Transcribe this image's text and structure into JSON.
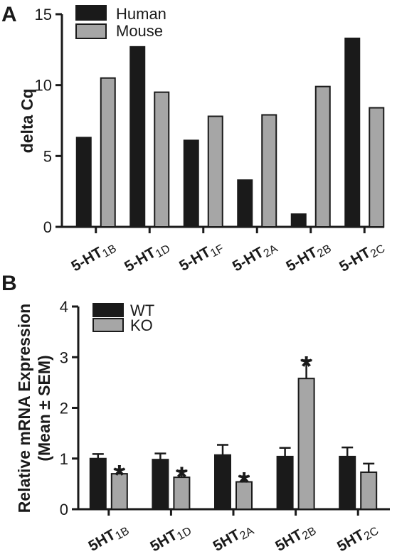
{
  "chart_data": [
    {
      "panel": "A",
      "type": "bar",
      "ylabel": "delta Cq",
      "ylim": [
        0,
        15
      ],
      "yticks": [
        0,
        5,
        10,
        15
      ],
      "categories": [
        {
          "prefix": "5-HT",
          "sub": "1B"
        },
        {
          "prefix": "5-HT",
          "sub": "1D"
        },
        {
          "prefix": "5-HT",
          "sub": "1F"
        },
        {
          "prefix": "5-HT",
          "sub": "2A"
        },
        {
          "prefix": "5-HT",
          "sub": "2B"
        },
        {
          "prefix": "5-HT",
          "sub": "2C"
        }
      ],
      "series": [
        {
          "name": "Human",
          "color": "#1a1a1a",
          "values": [
            6.3,
            12.7,
            6.1,
            3.3,
            0.9,
            13.3
          ]
        },
        {
          "name": "Mouse",
          "color": "#a6a6a6",
          "values": [
            10.5,
            9.5,
            7.8,
            7.9,
            9.9,
            8.4
          ]
        }
      ],
      "legend_position": "top-left"
    },
    {
      "panel": "B",
      "type": "bar",
      "ylabel_line1": "Relative mRNA Expression",
      "ylabel_line2": "(Mean ± SEM)",
      "ylim": [
        0,
        4
      ],
      "yticks": [
        0,
        1,
        2,
        3,
        4
      ],
      "categories": [
        {
          "prefix": "5HT",
          "sub": "1B"
        },
        {
          "prefix": "5HT",
          "sub": "1D"
        },
        {
          "prefix": "5HT",
          "sub": "2A"
        },
        {
          "prefix": "5HT",
          "sub": "2B"
        },
        {
          "prefix": "5HT",
          "sub": "2C"
        }
      ],
      "series": [
        {
          "name": "WT",
          "color": "#1a1a1a",
          "values": [
            1.0,
            0.98,
            1.07,
            1.04,
            1.04
          ],
          "errors": [
            0.09,
            0.12,
            0.2,
            0.17,
            0.18
          ],
          "significant": [
            false,
            false,
            false,
            false,
            false
          ]
        },
        {
          "name": "KO",
          "color": "#a6a6a6",
          "values": [
            0.7,
            0.63,
            0.54,
            2.58,
            0.73
          ],
          "errors": [
            0.09,
            0.13,
            0.11,
            0.36,
            0.17
          ],
          "significant": [
            true,
            true,
            true,
            true,
            false
          ]
        }
      ],
      "significance_marker": "*",
      "legend_position": "top-left"
    }
  ]
}
